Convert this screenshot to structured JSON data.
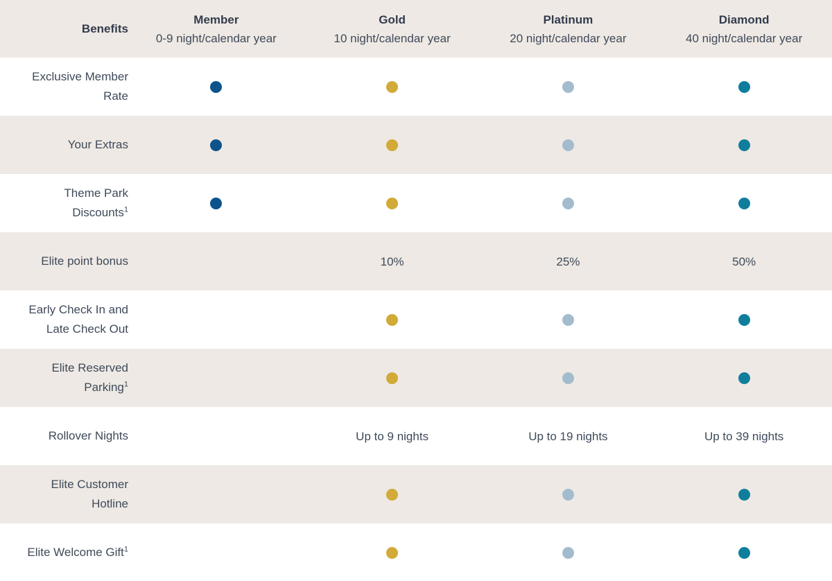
{
  "colors": {
    "row_alt_bg": "#EEE9E4",
    "row_bg": "#FFFFFF",
    "heading_text": "#333C4D",
    "body_text": "#3F4A59"
  },
  "table": {
    "benefits_header": "Benefits",
    "tiers": [
      {
        "id": "member",
        "name": "Member",
        "subtitle": "0-9 night/calendar year",
        "dot_color": "#0C538C"
      },
      {
        "id": "gold",
        "name": "Gold",
        "subtitle": "10 night/calendar year",
        "dot_color": "#D1AA38"
      },
      {
        "id": "platinum",
        "name": "Platinum",
        "subtitle": "20 night/calendar year",
        "dot_color": "#A3BCCD"
      },
      {
        "id": "diamond",
        "name": "Diamond",
        "subtitle": "40 night/calendar year",
        "dot_color": "#0F7E9D"
      }
    ],
    "rows": [
      {
        "benefit": "Exclusive Member Rate",
        "superscript": "",
        "cells": [
          "dot",
          "dot",
          "dot",
          "dot"
        ]
      },
      {
        "benefit": "Your Extras",
        "superscript": "",
        "cells": [
          "dot",
          "dot",
          "dot",
          "dot"
        ]
      },
      {
        "benefit": "Theme Park Discounts",
        "superscript": "1",
        "cells": [
          "dot",
          "dot",
          "dot",
          "dot"
        ]
      },
      {
        "benefit": "Elite point bonus",
        "superscript": "",
        "cells": [
          "",
          "10%",
          "25%",
          "50%"
        ]
      },
      {
        "benefit": "Early Check In and Late Check Out",
        "superscript": "",
        "cells": [
          "",
          "dot",
          "dot",
          "dot"
        ]
      },
      {
        "benefit": "Elite Reserved Parking",
        "superscript": "1",
        "cells": [
          "",
          "dot",
          "dot",
          "dot"
        ]
      },
      {
        "benefit": "Rollover Nights",
        "superscript": "",
        "cells": [
          "",
          "Up to 9 nights",
          "Up to 19 nights",
          "Up to 39 nights"
        ]
      },
      {
        "benefit": "Elite Customer Hotline",
        "superscript": "",
        "cells": [
          "",
          "dot",
          "dot",
          "dot"
        ]
      },
      {
        "benefit": "Elite Welcome Gift",
        "superscript": "1",
        "cells": [
          "",
          "dot",
          "dot",
          "dot"
        ]
      }
    ]
  }
}
